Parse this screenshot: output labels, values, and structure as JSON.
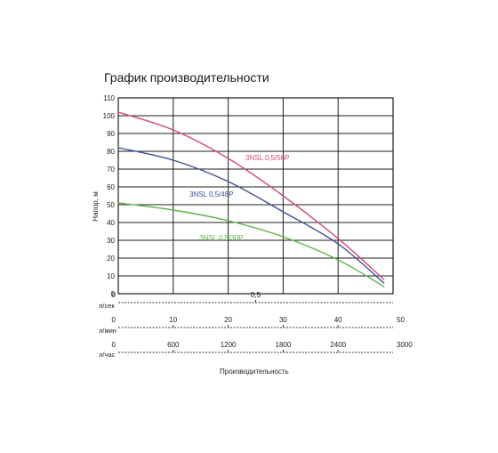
{
  "chart_data": {
    "type": "line",
    "title": "График производительности",
    "ylabel": "Напор, м",
    "xlabel": "Производительность",
    "ylim": [
      0,
      110
    ],
    "y_ticks": [
      "0",
      "10",
      "20",
      "30",
      "40",
      "50",
      "60",
      "70",
      "80",
      "90",
      "100",
      "110"
    ],
    "x_scales": [
      {
        "unit": "л/сек",
        "ticks": [
          "0",
          "0,5"
        ],
        "tick_values": [
          0,
          0.5
        ],
        "max": 1.0
      },
      {
        "unit": "л/мин",
        "ticks": [
          "0",
          "10",
          "20",
          "30",
          "40",
          "50"
        ],
        "tick_values": [
          0,
          10,
          20,
          30,
          40,
          50
        ],
        "max": 50
      },
      {
        "unit": "л/час",
        "ticks": [
          "0",
          "600",
          "1200",
          "1800",
          "2400",
          "3000"
        ],
        "tick_values": [
          0,
          600,
          1200,
          1800,
          2400,
          3000
        ],
        "max": 3000
      }
    ],
    "grid": true,
    "series": [
      {
        "name": "3NSL 0,5/56P",
        "color": "#d64a6e",
        "x": [
          0,
          600,
          1200,
          1800,
          2400,
          2900
        ],
        "y": [
          102,
          92,
          76,
          55,
          31,
          8
        ]
      },
      {
        "name": "3NSL 0,5/48P",
        "color": "#3f4f96",
        "x": [
          0,
          600,
          1200,
          1800,
          2400,
          2900
        ],
        "y": [
          82,
          75,
          63,
          46,
          28,
          6
        ]
      },
      {
        "name": "3NSL 0,5/30P",
        "color": "#5fb347",
        "x": [
          0,
          600,
          1200,
          1800,
          2400,
          2900
        ],
        "y": [
          51,
          47,
          41,
          32,
          19,
          4
        ]
      }
    ]
  }
}
